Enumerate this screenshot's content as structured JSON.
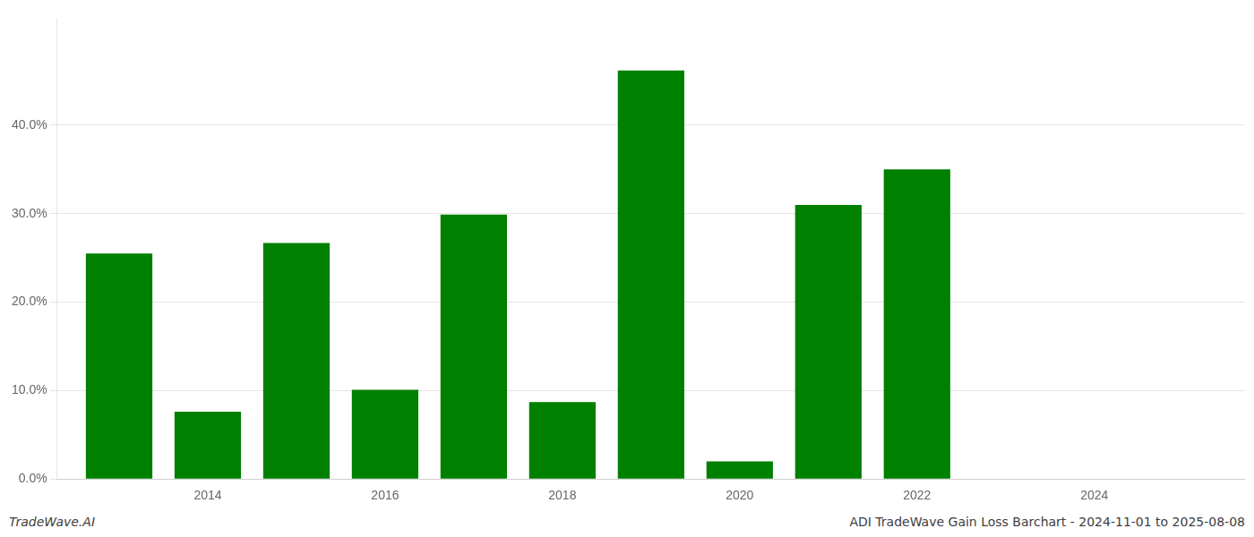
{
  "chart_data": {
    "type": "bar",
    "x": [
      2013,
      2014,
      2015,
      2016,
      2017,
      2018,
      2019,
      2020,
      2021,
      2022,
      2023,
      2024
    ],
    "values": [
      0.255,
      0.076,
      0.267,
      0.101,
      0.299,
      0.087,
      0.462,
      0.02,
      0.31,
      0.35,
      0.0,
      0.0
    ],
    "color": "#008000",
    "xlim": [
      2012.3,
      2025.7
    ],
    "xticks": [
      2014,
      2016,
      2018,
      2020,
      2022,
      2024
    ],
    "ylim": [
      0,
      0.52
    ],
    "yticks": [
      {
        "value": 0.0,
        "label": "0.0%"
      },
      {
        "value": 0.1,
        "label": "10.0%"
      },
      {
        "value": 0.2,
        "label": "20.0%"
      },
      {
        "value": 0.3,
        "label": "30.0%"
      },
      {
        "value": 0.4,
        "label": "40.0%"
      }
    ],
    "grid": "y",
    "annotations": [
      "TradeWave.AI",
      "ADI TradeWave Gain Loss Barchart - 2024-11-01 to 2025-08-08"
    ]
  }
}
